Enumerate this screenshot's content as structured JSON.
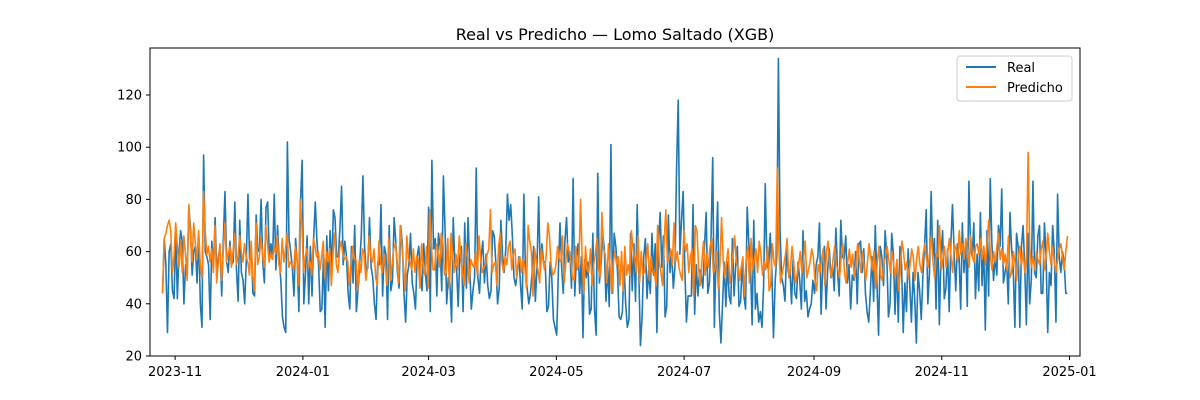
{
  "chart_data": {
    "type": "line",
    "title": "Real vs Predicho — Lomo Saltado (XGB)",
    "xlabel": "",
    "ylabel": "",
    "x_range": [
      "2023-10-26",
      "2024-12-31"
    ],
    "xlim": [
      "2023-10-20",
      "2025-01-06"
    ],
    "ylim": [
      20,
      138
    ],
    "x_ticks": [
      "2023-11",
      "2024-01",
      "2024-03",
      "2024-05",
      "2024-07",
      "2024-09",
      "2024-11",
      "2025-01"
    ],
    "y_ticks": [
      20,
      40,
      60,
      80,
      100,
      120
    ],
    "grid": false,
    "legend_position": "top-right",
    "series": [
      {
        "name": "Real",
        "color": "#1f77b4",
        "values": [
          44,
          65,
          55,
          29,
          60,
          63,
          45,
          42,
          68,
          42,
          60,
          68,
          64,
          40,
          55,
          51,
          77,
          69,
          51,
          60,
          62,
          48,
          67,
          40,
          31,
          97,
          60,
          58,
          55,
          34,
          64,
          54,
          73,
          52,
          58,
          62,
          43,
          65,
          83,
          56,
          52,
          64,
          55,
          56,
          79,
          53,
          41,
          72,
          52,
          49,
          40,
          57,
          82,
          57,
          62,
          44,
          43,
          74,
          60,
          61,
          80,
          56,
          48,
          77,
          79,
          58,
          63,
          57,
          82,
          53,
          70,
          57,
          49,
          35,
          31,
          29,
          102,
          65,
          60,
          54,
          43,
          65,
          56,
          37,
          79,
          95,
          40,
          51,
          66,
          40,
          62,
          43,
          65,
          79,
          64,
          55,
          37,
          38,
          59,
          31,
          66,
          45,
          68,
          52,
          76,
          73,
          58,
          58,
          69,
          85,
          55,
          64,
          58,
          44,
          38,
          62,
          48,
          70,
          37,
          45,
          55,
          66,
          89,
          62,
          52,
          54,
          73,
          54,
          50,
          40,
          34,
          56,
          55,
          78,
          43,
          62,
          59,
          34,
          70,
          45,
          49,
          73,
          64,
          52,
          46,
          70,
          63,
          44,
          33,
          51,
          55,
          67,
          48,
          44,
          38,
          58,
          62,
          52,
          45,
          63,
          52,
          45,
          77,
          37,
          95,
          61,
          65,
          43,
          67,
          62,
          45,
          89,
          69,
          40,
          50,
          48,
          33,
          73,
          55,
          54,
          39,
          58,
          62,
          37,
          71,
          46,
          73,
          55,
          38,
          45,
          50,
          92,
          50,
          44,
          58,
          64,
          48,
          59,
          47,
          42,
          45,
          68,
          66,
          55,
          40,
          46,
          72,
          59,
          52,
          61,
          82,
          72,
          78,
          66,
          50,
          47,
          52,
          58,
          47,
          38,
          82,
          52,
          46,
          40,
          44,
          52,
          62,
          41,
          54,
          81,
          52,
          63,
          56,
          56,
          37,
          39,
          56,
          50,
          34,
          31,
          28,
          52,
          71,
          54,
          44,
          64,
          73,
          56,
          60,
          46,
          88,
          43,
          58,
          63,
          44,
          58,
          27,
          57,
          50,
          56,
          36,
          38,
          67,
          38,
          28,
          90,
          48,
          55,
          67,
          61,
          41,
          54,
          39,
          101,
          44,
          67,
          62,
          53,
          35,
          34,
          37,
          55,
          40,
          31,
          34,
          67,
          45,
          63,
          41,
          78,
          52,
          24,
          35,
          58,
          65,
          42,
          53,
          44,
          67,
          51,
          63,
          29,
          63,
          75,
          54,
          66,
          35,
          39,
          74,
          52,
          60,
          46,
          54,
          92,
          118,
          59,
          72,
          83,
          54,
          33,
          43,
          43,
          43,
          78,
          36,
          55,
          43,
          53,
          51,
          46,
          62,
          75,
          44,
          48,
          66,
          96,
          31,
          59,
          79,
          37,
          25,
          40,
          56,
          39,
          56,
          43,
          40,
          65,
          43,
          55,
          62,
          39,
          41,
          56,
          43,
          38,
          77,
          63,
          55,
          32,
          72,
          38,
          44,
          33,
          37,
          31,
          47,
          86,
          55,
          53,
          67,
          53,
          27,
          48,
          58,
          134,
          68,
          50,
          47,
          41,
          61,
          52,
          53,
          40,
          58,
          44,
          42,
          56,
          49,
          38,
          68,
          41,
          45,
          35,
          38,
          40,
          49,
          44,
          55,
          58,
          71,
          36,
          55,
          62,
          38,
          53,
          61,
          50,
          55,
          45,
          69,
          53,
          43,
          72,
          58,
          57,
          66,
          48,
          55,
          38,
          51,
          49,
          60,
          40,
          63,
          64,
          52,
          61,
          44,
          37,
          33,
          45,
          58,
          41,
          70,
          48,
          28,
          62,
          58,
          47,
          68,
          58,
          35,
          40,
          67,
          59,
          36,
          56,
          33,
          62,
          55,
          29,
          48,
          37,
          61,
          47,
          33,
          52,
          42,
          25,
          52,
          45,
          34,
          51,
          62,
          76,
          40,
          52,
          83,
          57,
          65,
          38,
          72,
          32,
          59,
          68,
          42,
          46,
          61,
          37,
          63,
          78,
          60,
          45,
          63,
          58,
          38,
          71,
          52,
          64,
          39,
          87,
          62,
          58,
          71,
          42,
          59,
          45,
          75,
          47,
          62,
          30,
          68,
          43,
          88,
          63,
          49,
          58,
          51,
          70,
          62,
          84,
          48,
          52,
          56,
          40,
          75,
          61,
          53,
          31,
          67,
          62,
          31,
          62,
          70,
          54,
          32,
          67,
          40,
          49,
          87,
          52,
          50,
          66,
          70,
          44,
          44,
          71,
          58,
          29,
          52,
          47,
          70,
          60,
          33,
          82,
          58,
          52,
          60,
          56,
          44,
          44
        ],
        "note_peaks": "peaks at 2024-06-17 (118) and 2024-07-28 (134)"
      },
      {
        "name": "Predicho",
        "color": "#ff7f0e",
        "values": [
          44,
          65,
          67,
          70,
          72,
          68,
          52,
          58,
          71,
          62,
          54,
          64,
          52,
          66,
          59,
          49,
          78,
          66,
          56,
          71,
          63,
          57,
          68,
          55,
          50,
          83,
          68,
          59,
          62,
          56,
          61,
          52,
          70,
          48,
          56,
          63,
          49,
          60,
          71,
          56,
          59,
          62,
          54,
          60,
          67,
          55,
          58,
          66,
          60,
          56,
          63,
          58,
          56,
          51,
          64,
          51,
          45,
          71,
          55,
          58,
          65,
          59,
          54,
          70,
          63,
          56,
          59,
          57,
          62,
          59,
          66,
          55,
          52,
          65,
          56,
          61,
          67,
          54,
          56,
          55,
          53,
          62,
          57,
          47,
          80,
          70,
          52,
          58,
          61,
          54,
          56,
          51,
          65,
          62,
          58,
          60,
          53,
          58,
          64,
          50,
          60,
          56,
          61,
          47,
          60,
          67,
          55,
          52,
          61,
          64,
          59,
          57,
          58,
          56,
          47,
          55,
          62,
          57,
          57,
          45,
          57,
          52,
          61,
          59,
          49,
          54,
          66,
          58,
          56,
          61,
          50,
          47,
          64,
          56,
          52,
          59,
          54,
          47,
          65,
          49,
          55,
          61,
          63,
          57,
          48,
          70,
          62,
          54,
          45,
          66,
          57,
          56,
          53,
          61,
          52,
          58,
          57,
          46,
          63,
          54,
          51,
          62,
          46,
          76,
          62,
          53,
          53,
          63,
          60,
          54,
          67,
          63,
          51,
          52,
          65,
          46,
          67,
          58,
          52,
          59,
          53,
          66,
          58,
          52,
          47,
          63,
          58,
          48,
          57,
          55,
          54,
          60,
          51,
          66,
          58,
          52,
          54,
          55,
          59,
          61,
          76,
          52,
          55,
          56,
          47,
          62,
          67,
          56,
          52,
          58,
          55,
          62,
          64,
          53,
          59,
          61,
          50,
          56,
          58,
          52,
          57,
          54,
          46,
          70,
          64,
          60,
          43,
          61,
          56,
          53,
          48,
          61,
          57,
          53,
          58,
          71,
          66,
          55,
          51,
          52,
          55,
          62,
          57,
          56,
          66,
          48,
          56,
          63,
          60,
          57,
          50,
          49,
          62,
          53,
          56,
          80,
          56,
          44,
          62,
          53,
          52,
          61,
          47,
          55,
          59,
          65,
          53,
          50,
          75,
          61,
          59,
          48,
          63,
          54,
          44,
          56,
          60,
          55,
          58,
          47,
          60,
          45,
          62,
          51,
          55,
          51,
          68,
          61,
          57,
          52,
          66,
          48,
          60,
          51,
          52,
          57,
          63,
          49,
          58,
          52,
          52,
          47,
          70,
          56,
          52,
          47,
          64,
          76,
          56,
          57,
          61,
          55,
          71,
          56,
          60,
          54,
          51,
          49,
          68,
          60,
          63,
          52,
          58,
          61,
          43,
          70,
          68,
          54,
          47,
          56,
          64,
          51,
          59,
          54,
          62,
          65,
          52,
          53,
          60,
          46,
          55,
          73,
          57,
          50,
          56,
          61,
          48,
          52,
          59,
          66,
          56,
          54,
          49,
          54,
          58,
          43,
          57,
          62,
          48,
          65,
          53,
          57,
          61,
          52,
          64,
          59,
          51,
          56,
          53,
          62,
          45,
          47,
          63,
          56,
          54,
          92,
          60,
          48,
          52,
          55,
          59,
          65,
          50,
          53,
          62,
          56,
          48,
          51,
          55,
          60,
          52,
          57,
          64,
          50,
          53,
          56,
          61,
          58,
          49,
          45,
          55,
          52,
          57,
          61,
          47,
          60,
          64,
          54,
          50,
          57,
          62,
          55,
          53,
          50,
          58,
          63,
          52,
          48,
          56,
          61,
          54,
          59,
          50,
          55,
          63,
          57,
          52,
          60,
          54,
          49,
          56,
          63,
          58,
          53,
          60,
          46,
          56,
          62,
          51,
          49,
          55,
          58,
          62,
          57,
          52,
          60,
          55,
          50,
          57,
          45,
          52,
          64,
          60,
          53,
          56,
          50,
          55,
          61,
          58,
          49,
          57,
          62,
          55,
          52,
          59,
          63,
          57,
          54,
          60,
          66,
          56,
          50,
          59,
          58,
          70,
          53,
          57,
          62,
          54,
          60,
          65,
          58,
          52,
          63,
          61,
          56,
          68,
          59,
          63,
          57,
          65,
          61,
          54,
          66,
          58,
          56,
          62,
          63,
          59,
          65,
          57,
          62,
          55,
          64,
          72,
          58,
          53,
          60,
          56,
          62,
          67,
          57,
          61,
          55,
          59,
          53,
          66,
          50,
          52,
          60,
          56,
          49,
          58,
          62,
          55,
          60,
          52,
          57,
          98,
          62,
          54,
          58,
          53,
          60,
          57,
          55,
          61,
          64,
          53,
          58,
          67,
          60,
          55,
          62,
          56,
          52,
          57,
          61,
          63,
          58,
          53,
          60,
          66
        ]
      }
    ]
  }
}
